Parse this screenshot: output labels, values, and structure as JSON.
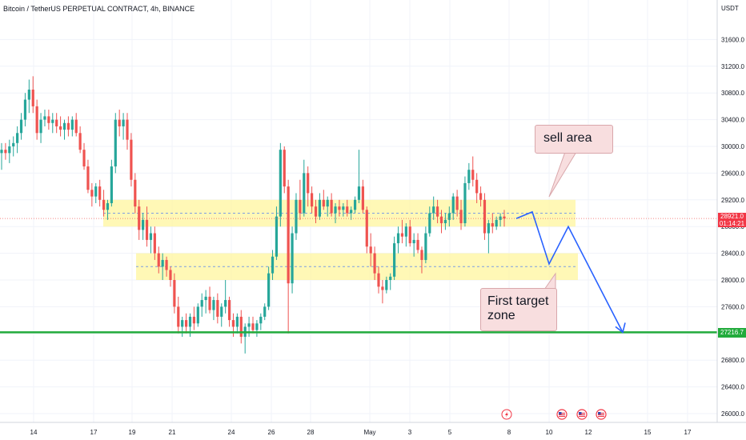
{
  "header": {
    "symbol_title": "Bitcoin / TetherUS PERPETUAL CONTRACT, 4h, BINANCE",
    "currency": "USDT"
  },
  "price_tags": {
    "current_price": "28921.0",
    "countdown": "01:14:21",
    "support_level": "27216.7"
  },
  "annotations": {
    "sell_area": "sell area",
    "first_target_line1": "First target",
    "first_target_line2": "zone"
  },
  "colors": {
    "bull": "#26a69a",
    "bear": "#ef5350",
    "zone_fill": "#fff59d",
    "support_line": "#22ab3c",
    "projection": "#2962ff",
    "note_bg": "#f8dedf"
  },
  "event_icons": [
    "lightning-icon",
    "us-flag-icon",
    "us-flag-icon",
    "us-flag-icon"
  ],
  "chart_data": {
    "type": "candlestick",
    "title": "Bitcoin / TetherUS PERPETUAL CONTRACT, 4h, BINANCE",
    "ylim": [
      25900,
      32000
    ],
    "y_ticks": [
      "31600.0",
      "31200.0",
      "30800.0",
      "30400.0",
      "30000.0",
      "29600.0",
      "29200.0",
      "28800.0",
      "28400.0",
      "28000.0",
      "27600.0",
      "27200.0",
      "26800.0",
      "26400.0",
      "26000.0"
    ],
    "x_ticks": [
      "14",
      "17",
      "19",
      "21",
      "24",
      "26",
      "28",
      "May",
      "3",
      "5",
      "8",
      "10",
      "12",
      "15",
      "17"
    ],
    "current_price": 28921.0,
    "support_level": 27216.7,
    "zones": [
      {
        "label": "sell area",
        "low": 28800,
        "high": 29200
      },
      {
        "label": "First target zone",
        "low": 28000,
        "high": 28400
      }
    ],
    "projection_path": [
      28921,
      29020,
      28240,
      28800,
      27216.7
    ],
    "ohlc": [
      [
        29900,
        30050,
        29650,
        29950
      ],
      [
        29950,
        30050,
        29800,
        29900
      ],
      [
        29900,
        30100,
        29750,
        30000
      ],
      [
        30000,
        30150,
        29850,
        30050
      ],
      [
        30050,
        30300,
        29900,
        30200
      ],
      [
        30200,
        30500,
        30100,
        30400
      ],
      [
        30400,
        30800,
        30300,
        30700
      ],
      [
        30700,
        31000,
        30500,
        30850
      ],
      [
        30850,
        31050,
        30500,
        30600
      ],
      [
        30600,
        30700,
        30100,
        30200
      ],
      [
        30200,
        30500,
        30050,
        30400
      ],
      [
        30400,
        30550,
        30300,
        30450
      ],
      [
        30450,
        30550,
        30250,
        30350
      ],
      [
        30350,
        30500,
        30200,
        30400
      ],
      [
        30400,
        30500,
        30200,
        30300
      ],
      [
        30300,
        30450,
        30150,
        30250
      ],
      [
        30250,
        30400,
        30100,
        30350
      ],
      [
        30350,
        30450,
        30150,
        30250
      ],
      [
        30250,
        30450,
        30150,
        30400
      ],
      [
        30400,
        30500,
        30150,
        30200
      ],
      [
        30200,
        30300,
        29900,
        29950
      ],
      [
        29950,
        30050,
        29650,
        29700
      ],
      [
        29700,
        29800,
        29300,
        29350
      ],
      [
        29350,
        29450,
        29100,
        29250
      ],
      [
        29250,
        29450,
        29150,
        29400
      ],
      [
        29400,
        29500,
        29100,
        29200
      ],
      [
        29200,
        29350,
        28950,
        29050
      ],
      [
        29050,
        29200,
        28900,
        29150
      ],
      [
        29150,
        29800,
        29100,
        29700
      ],
      [
        29700,
        30500,
        29600,
        30400
      ],
      [
        30400,
        30550,
        30150,
        30300
      ],
      [
        30300,
        30500,
        30100,
        30400
      ],
      [
        30400,
        30500,
        29950,
        30100
      ],
      [
        30100,
        30200,
        29400,
        29500
      ],
      [
        29500,
        29600,
        29000,
        29100
      ],
      [
        29100,
        29200,
        28600,
        28750
      ],
      [
        28750,
        29000,
        28600,
        28900
      ],
      [
        28900,
        29100,
        28500,
        28600
      ],
      [
        28600,
        28800,
        28400,
        28700
      ],
      [
        28700,
        28800,
        28300,
        28400
      ],
      [
        28400,
        28500,
        28100,
        28200
      ],
      [
        28200,
        28400,
        28000,
        28300
      ],
      [
        28300,
        28350,
        28050,
        28150
      ],
      [
        28150,
        28200,
        27900,
        28000
      ],
      [
        28000,
        28100,
        27500,
        27600
      ],
      [
        27600,
        27750,
        27200,
        27300
      ],
      [
        27300,
        27450,
        27150,
        27400
      ],
      [
        27400,
        27500,
        27200,
        27300
      ],
      [
        27300,
        27500,
        27150,
        27450
      ],
      [
        27450,
        27600,
        27250,
        27350
      ],
      [
        27350,
        27650,
        27300,
        27600
      ],
      [
        27600,
        27800,
        27450,
        27700
      ],
      [
        27700,
        27850,
        27500,
        27750
      ],
      [
        27750,
        27900,
        27500,
        27550
      ],
      [
        27550,
        27750,
        27400,
        27700
      ],
      [
        27700,
        27800,
        27350,
        27450
      ],
      [
        27450,
        27650,
        27300,
        27600
      ],
      [
        27600,
        28000,
        27500,
        27700
      ],
      [
        27700,
        27750,
        27300,
        27400
      ],
      [
        27400,
        27500,
        27150,
        27300
      ],
      [
        27300,
        27500,
        27200,
        27450
      ],
      [
        27450,
        27550,
        27050,
        27150
      ],
      [
        27150,
        27350,
        26900,
        27300
      ],
      [
        27300,
        27450,
        27150,
        27350
      ],
      [
        27350,
        27450,
        27200,
        27250
      ],
      [
        27250,
        27400,
        27150,
        27350
      ],
      [
        27350,
        27500,
        27250,
        27450
      ],
      [
        27450,
        27650,
        27400,
        27600
      ],
      [
        27600,
        28200,
        27550,
        28100
      ],
      [
        28100,
        28450,
        28000,
        28350
      ],
      [
        28350,
        29100,
        28300,
        28950
      ],
      [
        28950,
        30050,
        28800,
        29950
      ],
      [
        29950,
        30000,
        29300,
        29400
      ],
      [
        29400,
        29500,
        27200,
        27950
      ],
      [
        27950,
        28800,
        27800,
        28700
      ],
      [
        28700,
        29300,
        28600,
        29200
      ],
      [
        29200,
        29500,
        28900,
        29000
      ],
      [
        29000,
        29800,
        28950,
        29600
      ],
      [
        29600,
        29700,
        29100,
        29300
      ],
      [
        29300,
        29400,
        29000,
        29100
      ],
      [
        29100,
        29200,
        28850,
        28950
      ],
      [
        28950,
        29300,
        28900,
        29200
      ],
      [
        29200,
        29350,
        29050,
        29100
      ],
      [
        29100,
        29250,
        28950,
        29200
      ],
      [
        29200,
        29300,
        28950,
        29000
      ],
      [
        29000,
        29150,
        28850,
        29100
      ],
      [
        29100,
        29200,
        28950,
        29050
      ],
      [
        29050,
        29150,
        28950,
        29100
      ],
      [
        29100,
        29200,
        28950,
        29000
      ],
      [
        29000,
        29100,
        28900,
        29050
      ],
      [
        29050,
        29250,
        29000,
        29200
      ],
      [
        29200,
        29950,
        29150,
        29400
      ],
      [
        29400,
        29500,
        29000,
        29050
      ],
      [
        29050,
        29100,
        28400,
        28500
      ],
      [
        28500,
        28700,
        28200,
        28400
      ],
      [
        28400,
        28500,
        28000,
        28100
      ],
      [
        28100,
        28200,
        27800,
        27900
      ],
      [
        27900,
        28000,
        27650,
        27850
      ],
      [
        27850,
        28050,
        27800,
        28000
      ],
      [
        28000,
        28100,
        27850,
        28050
      ],
      [
        28050,
        28650,
        28000,
        28550
      ],
      [
        28550,
        28800,
        28400,
        28700
      ],
      [
        28700,
        28900,
        28550,
        28650
      ],
      [
        28650,
        28850,
        28500,
        28800
      ],
      [
        28800,
        28900,
        28500,
        28550
      ],
      [
        28550,
        28700,
        28350,
        28600
      ],
      [
        28600,
        28700,
        28400,
        28450
      ],
      [
        28450,
        28500,
        28100,
        28300
      ],
      [
        28300,
        28800,
        28250,
        28700
      ],
      [
        28700,
        29100,
        28650,
        29000
      ],
      [
        29000,
        29250,
        28900,
        29100
      ],
      [
        29100,
        29200,
        28850,
        28950
      ],
      [
        28950,
        29050,
        28700,
        28850
      ],
      [
        28850,
        29000,
        28750,
        28900
      ],
      [
        28900,
        29100,
        28800,
        29000
      ],
      [
        29000,
        29300,
        28900,
        29250
      ],
      [
        29250,
        29350,
        28950,
        29050
      ],
      [
        29050,
        29200,
        28750,
        28850
      ],
      [
        28850,
        29550,
        28800,
        29450
      ],
      [
        29450,
        29750,
        29350,
        29650
      ],
      [
        29650,
        29850,
        29400,
        29500
      ],
      [
        29500,
        29600,
        29150,
        29300
      ],
      [
        29300,
        29400,
        29100,
        29200
      ],
      [
        29200,
        29300,
        28600,
        28700
      ],
      [
        28700,
        28900,
        28400,
        28850
      ],
      [
        28850,
        29000,
        28700,
        28800
      ],
      [
        28800,
        28950,
        28750,
        28900
      ],
      [
        28900,
        29000,
        28800,
        28950
      ],
      [
        28950,
        29050,
        28800,
        28921
      ]
    ]
  }
}
